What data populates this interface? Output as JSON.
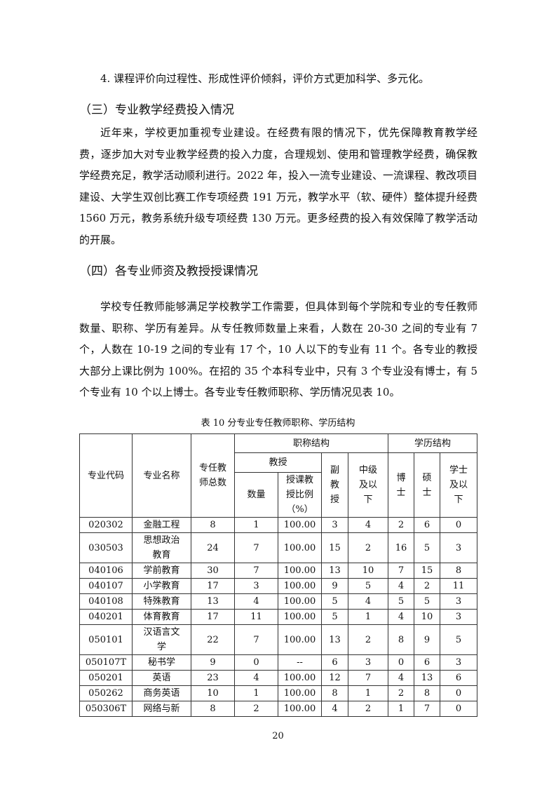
{
  "paragraphs": {
    "p0": "4. 课程评价向过程性、形成性评价倾斜，评价方式更加科学、多元化。",
    "h3": "（三）专业教学经费投入情况",
    "p1": "近年来，学校更加重视专业建设。在经费有限的情况下，优先保障教育教学经费，逐步加大对专业教学经费的投入力度，合理规划、使用和管理教学经费，确保教学经费充足，教学活动顺利进行。2022 年，投入一流专业建设、一流课程、教改项目建设、大学生双创比赛工作专项经费 191 万元，教学水平（软、硬件）整体提升经费 1560 万元，教务系统升级专项经费 130 万元。更多经费的投入有效保障了教学活动的开展。",
    "h4": "（四）各专业师资及教授授课情况",
    "p2": "学校专任教师能够满足学校教学工作需要，但具体到每个学院和专业的专任教师数量、职称、学历有差异。从专任教师数量上来看，人数在 20-30 之间的专业有 7 个，人数在 10-19 之间的专业有 17 个，10 人以下的专业有 11 个。各专业的教授大部分上课比例为 100%。在招的 35 个本科专业中，只有 3 个专业没有博士，有 5 个专业有 10 个以上博士。各专业专任教师职称、学历情况见表 10。"
  },
  "table": {
    "caption": "表 10 分专业专任教师职称、学历结构",
    "headers": {
      "code": "专业代码",
      "name": "专业名称",
      "total": "专任教师总数",
      "title_struct": "职称结构",
      "edu_struct": "学历结构",
      "prof": "教授",
      "prof_count": "数量",
      "prof_ratio": "授课教授比例（%）",
      "assoc": "副教授",
      "mid": "中级及以下",
      "phd": "博士",
      "master": "硕士",
      "bachelor": "学士及以下"
    },
    "rows": [
      [
        "020302",
        "金融工程",
        "8",
        "1",
        "100.00",
        "3",
        "4",
        "2",
        "6",
        "0"
      ],
      [
        "030503",
        "思想政治教育",
        "24",
        "7",
        "100.00",
        "15",
        "2",
        "16",
        "5",
        "3"
      ],
      [
        "040106",
        "学前教育",
        "30",
        "7",
        "100.00",
        "13",
        "10",
        "7",
        "15",
        "8"
      ],
      [
        "040107",
        "小学教育",
        "17",
        "3",
        "100.00",
        "9",
        "5",
        "4",
        "2",
        "11"
      ],
      [
        "040108",
        "特殊教育",
        "13",
        "4",
        "100.00",
        "5",
        "4",
        "5",
        "5",
        "3"
      ],
      [
        "040201",
        "体育教育",
        "17",
        "11",
        "100.00",
        "5",
        "1",
        "4",
        "10",
        "3"
      ],
      [
        "050101",
        "汉语言文学",
        "22",
        "7",
        "100.00",
        "13",
        "2",
        "8",
        "9",
        "5"
      ],
      [
        "050107T",
        "秘书学",
        "9",
        "0",
        "--",
        "6",
        "3",
        "0",
        "6",
        "3"
      ],
      [
        "050201",
        "英语",
        "23",
        "4",
        "100.00",
        "12",
        "7",
        "4",
        "13",
        "6"
      ],
      [
        "050262",
        "商务英语",
        "10",
        "1",
        "100.00",
        "8",
        "1",
        "2",
        "8",
        "0"
      ],
      [
        "050306T",
        "网络与新",
        "8",
        "2",
        "100.00",
        "4",
        "2",
        "1",
        "7",
        "0"
      ]
    ]
  },
  "page_number": "20"
}
